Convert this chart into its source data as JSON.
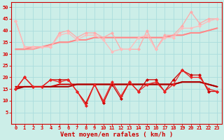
{
  "xlabel": "Vent moyen/en rafales ( km/h )",
  "background_color": "#cceee8",
  "grid_color": "#aadddd",
  "x": [
    0,
    1,
    2,
    3,
    4,
    5,
    6,
    7,
    8,
    9,
    10,
    11,
    12,
    13,
    14,
    15,
    16,
    17,
    18,
    19,
    20,
    21,
    22,
    23
  ],
  "series": [
    {
      "y": [
        44,
        33,
        33,
        33,
        33,
        39,
        40,
        37,
        39,
        39,
        37,
        39,
        32,
        32,
        32,
        40,
        32,
        38,
        38,
        42,
        48,
        43,
        45,
        45
      ],
      "color": "#ffaaaa",
      "lw": 0.9,
      "marker": "D",
      "ms": 2.0,
      "zorder": 3
    },
    {
      "y": [
        44,
        33,
        33,
        33,
        33,
        38,
        39,
        36,
        38,
        38,
        36,
        31,
        32,
        32,
        37,
        38,
        32,
        37,
        37,
        41,
        41,
        42,
        44,
        45
      ],
      "color": "#ffbbbb",
      "lw": 0.9,
      "marker": "D",
      "ms": 2.0,
      "zorder": 3
    },
    {
      "y": [
        32,
        32,
        32,
        33,
        34,
        35,
        35,
        36,
        36,
        37,
        37,
        37,
        37,
        37,
        37,
        37,
        37,
        37,
        38,
        38,
        39,
        39,
        40,
        41
      ],
      "color": "#ff9999",
      "lw": 1.3,
      "marker": null,
      "ms": 0,
      "zorder": 2
    },
    {
      "y": [
        32,
        32,
        33,
        33,
        34,
        35,
        35,
        36,
        36,
        37,
        37,
        37,
        37,
        37,
        37,
        37,
        37,
        37,
        38,
        38,
        39,
        39,
        40,
        41
      ],
      "color": "#ff8888",
      "lw": 1.3,
      "marker": null,
      "ms": 0,
      "zorder": 2
    },
    {
      "y": [
        15,
        20,
        16,
        16,
        19,
        19,
        19,
        14,
        9,
        17,
        9,
        17,
        11,
        18,
        14,
        19,
        19,
        14,
        19,
        23,
        21,
        21,
        14,
        14
      ],
      "color": "#cc0000",
      "lw": 0.9,
      "marker": "D",
      "ms": 2.0,
      "zorder": 4
    },
    {
      "y": [
        15,
        20,
        16,
        16,
        19,
        18,
        19,
        14,
        8,
        17,
        10,
        18,
        12,
        18,
        14,
        17,
        18,
        14,
        17,
        23,
        20,
        20,
        15,
        14
      ],
      "color": "#ee2222",
      "lw": 0.9,
      "marker": "D",
      "ms": 2.0,
      "zorder": 4
    },
    {
      "y": [
        16,
        16,
        16,
        16,
        16,
        17,
        17,
        17,
        17,
        17,
        17,
        17,
        17,
        17,
        17,
        17,
        17,
        17,
        17,
        18,
        18,
        18,
        17,
        16
      ],
      "color": "#cc0000",
      "lw": 1.4,
      "marker": null,
      "ms": 0,
      "zorder": 2
    },
    {
      "y": [
        15,
        16,
        16,
        16,
        16,
        16,
        16,
        17,
        17,
        17,
        17,
        17,
        17,
        17,
        17,
        17,
        17,
        17,
        17,
        18,
        18,
        18,
        17,
        16
      ],
      "color": "#aa0000",
      "lw": 1.4,
      "marker": null,
      "ms": 0,
      "zorder": 2
    }
  ],
  "ylim": [
    0,
    52
  ],
  "yticks": [
    5,
    10,
    15,
    20,
    25,
    30,
    35,
    40,
    45,
    50
  ],
  "xticks": [
    0,
    1,
    2,
    3,
    4,
    5,
    6,
    7,
    8,
    9,
    10,
    11,
    12,
    13,
    14,
    15,
    16,
    17,
    18,
    19,
    20,
    21,
    22,
    23
  ],
  "tick_fontsize": 5.0,
  "xlabel_fontsize": 6.5,
  "tick_color": "#dd0000",
  "xlabel_color": "#cc0000",
  "spine_color": "#cc0000"
}
